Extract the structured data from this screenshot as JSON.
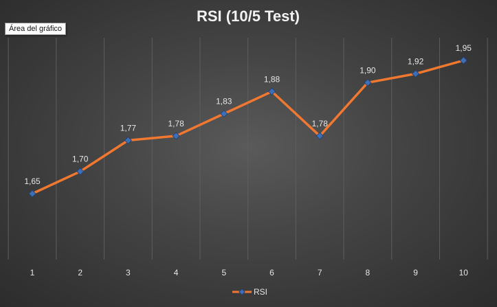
{
  "tooltip": "Área del gráfico",
  "chart_data": {
    "type": "line",
    "title": "RSI (10/5 Test)",
    "xlabel": "",
    "ylabel": "",
    "categories": [
      "1",
      "2",
      "3",
      "4",
      "5",
      "6",
      "7",
      "8",
      "9",
      "10"
    ],
    "series": [
      {
        "name": "RSI",
        "values": [
          1.65,
          1.7,
          1.77,
          1.78,
          1.83,
          1.88,
          1.78,
          1.9,
          1.92,
          1.95
        ],
        "labels": [
          "1,65",
          "1,70",
          "1,77",
          "1,78",
          "1,83",
          "1,88",
          "1,78",
          "1,90",
          "1,92",
          "1,95"
        ]
      }
    ],
    "grid": "vertical",
    "y_axis_visible": false,
    "legend": "bottom",
    "colors": {
      "line": "#f07830",
      "marker_fill": "#3d6fb6",
      "marker_stroke": "#1f3f73",
      "text": "#e6e6e6",
      "title": "#f2f2f2",
      "grid": "#5e5e5e"
    }
  }
}
